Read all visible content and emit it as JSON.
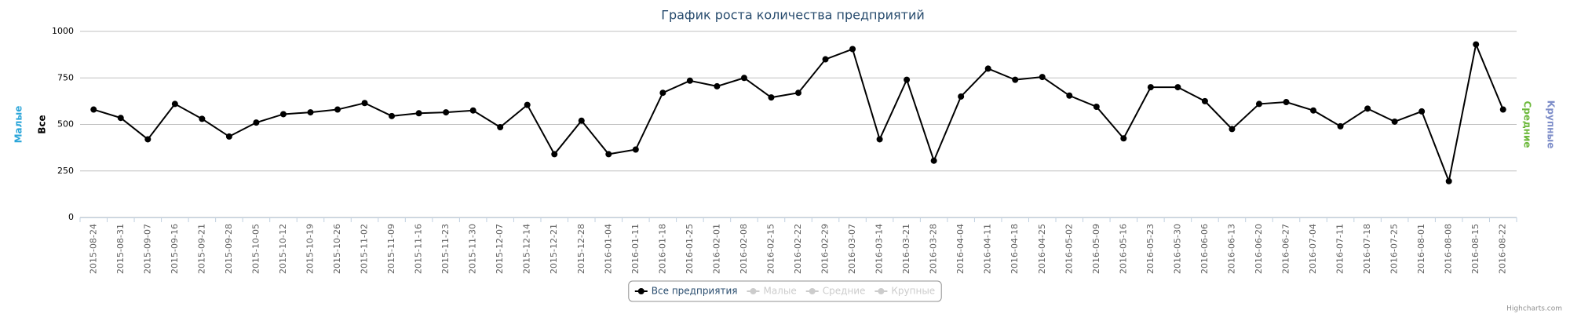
{
  "chart_data": {
    "type": "line",
    "title": "График роста количества предприятий",
    "categories": [
      "2015-08-24",
      "2015-08-31",
      "2015-09-07",
      "2015-09-16",
      "2015-09-21",
      "2015-09-28",
      "2015-10-05",
      "2015-10-12",
      "2015-10-19",
      "2015-10-26",
      "2015-11-02",
      "2015-11-09",
      "2015-11-16",
      "2015-11-23",
      "2015-11-30",
      "2015-12-07",
      "2015-12-14",
      "2015-12-21",
      "2015-12-28",
      "2016-01-04",
      "2016-01-11",
      "2016-01-18",
      "2016-01-25",
      "2016-02-01",
      "2016-02-08",
      "2016-02-15",
      "2016-02-22",
      "2016-02-29",
      "2016-03-07",
      "2016-03-14",
      "2016-03-21",
      "2016-03-28",
      "2016-04-04",
      "2016-04-11",
      "2016-04-18",
      "2016-04-25",
      "2016-05-02",
      "2016-05-09",
      "2016-05-16",
      "2016-05-23",
      "2016-05-30",
      "2016-06-06",
      "2016-06-13",
      "2016-06-20",
      "2016-06-27",
      "2016-07-04",
      "2016-07-11",
      "2016-07-18",
      "2016-07-25",
      "2016-08-01",
      "2016-08-08",
      "2016-08-15",
      "2016-08-22"
    ],
    "series": [
      {
        "name": "Все предприятия",
        "color": "#000000",
        "visible": true,
        "values": [
          580,
          535,
          420,
          610,
          530,
          435,
          510,
          555,
          565,
          580,
          615,
          545,
          560,
          565,
          575,
          485,
          605,
          340,
          520,
          340,
          365,
          670,
          735,
          705,
          750,
          645,
          670,
          850,
          905,
          420,
          740,
          305,
          650,
          800,
          740,
          755,
          655,
          595,
          425,
          700,
          700,
          625,
          475,
          610,
          620,
          575,
          490,
          585,
          515,
          570,
          195,
          930,
          580
        ]
      },
      {
        "name": "Малые",
        "color": "#2aa5d9",
        "visible": false
      },
      {
        "name": "Средние",
        "color": "#6cb83b",
        "visible": false
      },
      {
        "name": "Крупные",
        "color": "#7e8ec9",
        "visible": false
      }
    ],
    "y_axis_titles": [
      {
        "title": "Малые",
        "color": "#2aa5d9"
      },
      {
        "title": "Все",
        "color": "#000000"
      }
    ],
    "y2_axis_titles": [
      {
        "title": "Средние",
        "color": "#6cb83b"
      },
      {
        "title": "Крупные",
        "color": "#7e8ec9"
      }
    ],
    "ylim": [
      0,
      1000
    ],
    "yticks": [
      0,
      250,
      500,
      750,
      1000
    ],
    "grid": true,
    "legend": "bottom",
    "credits": "Highcharts.com"
  }
}
